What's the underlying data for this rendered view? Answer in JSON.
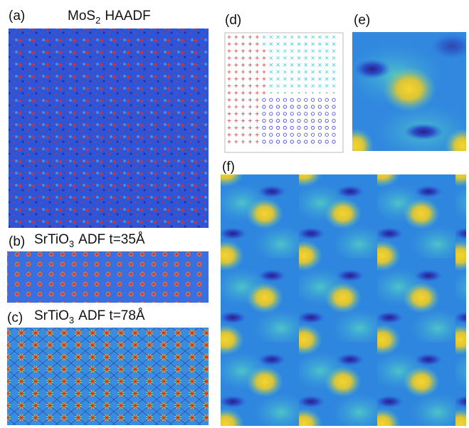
{
  "panels": [
    {
      "label": "(a)",
      "title": [
        "MoS",
        "2",
        "HAADF"
      ]
    },
    {
      "label": "(b)",
      "title": [
        "SrTiO",
        "3",
        "ADF t=35Å"
      ]
    },
    {
      "label": "(c)",
      "title": [
        "SrTiO",
        "3",
        "ADF t=78Å"
      ]
    },
    {
      "label": "(d)"
    },
    {
      "label": "(e)"
    },
    {
      "label": "(f)"
    }
  ]
}
